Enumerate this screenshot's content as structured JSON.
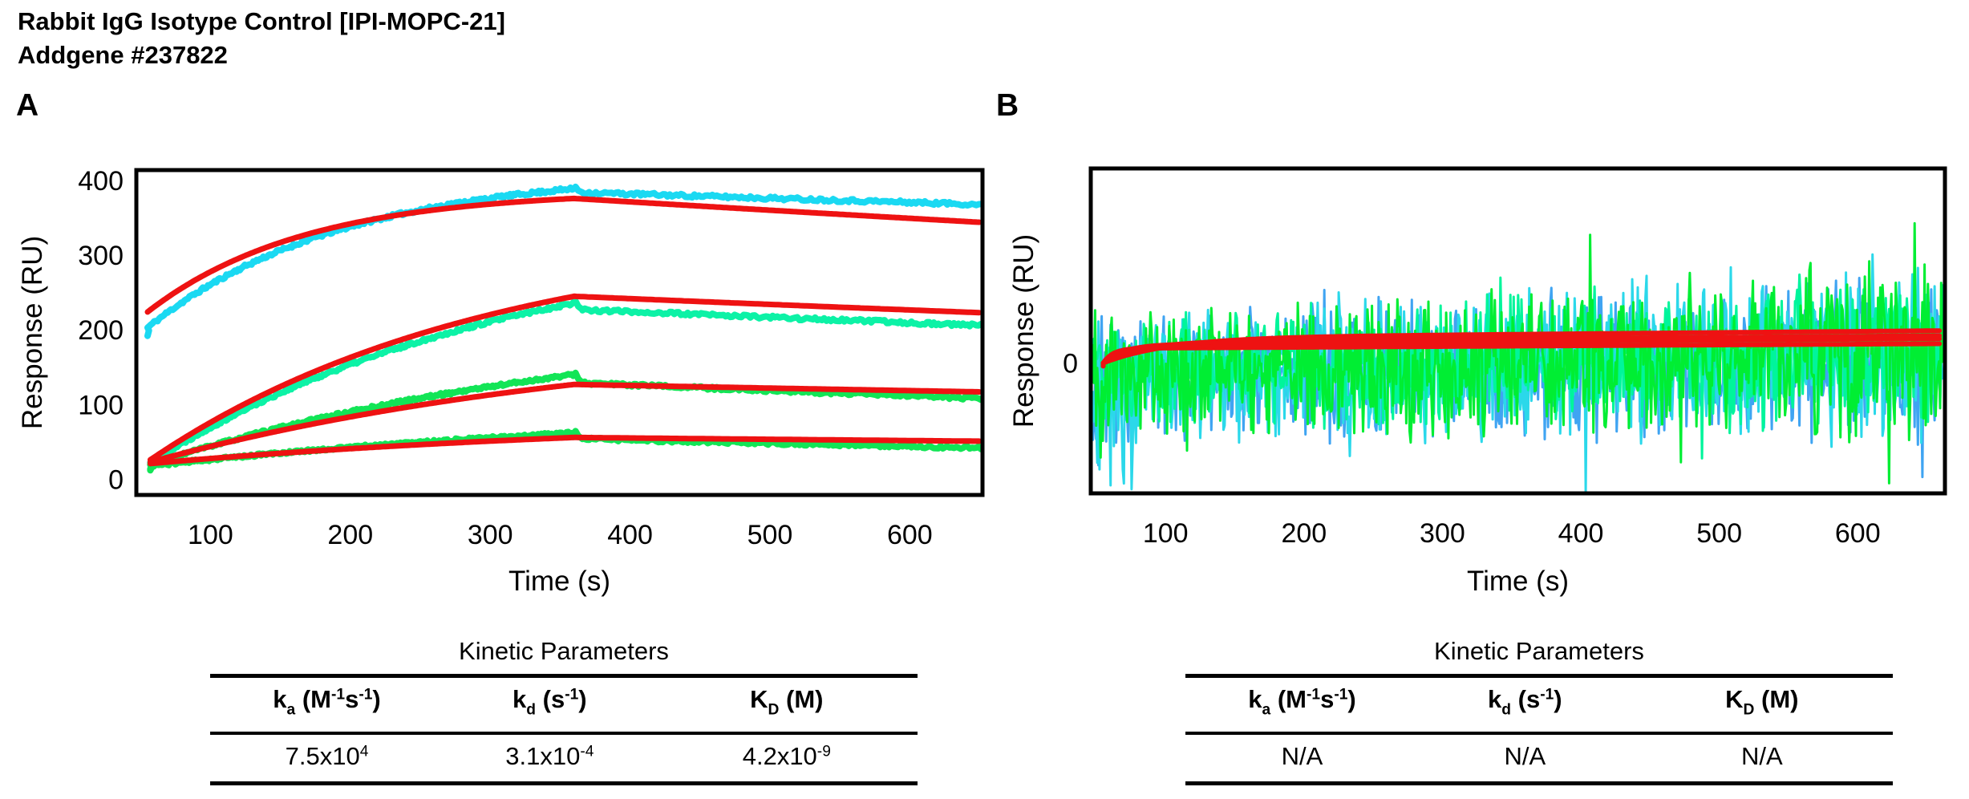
{
  "page": {
    "title_line1": "Rabbit IgG Isotype Control [IPI-MOPC-21]",
    "title_line2": "Addgene #237822",
    "background": "#ffffff",
    "accent_fit_color": "#ee1212"
  },
  "panels": [
    {
      "label": "A"
    },
    {
      "label": "B"
    }
  ],
  "chart_data": [
    {
      "type": "line",
      "panel": "A",
      "description": "SPR sensorgram, four analyte concentrations: noisy cyan/green traces with red 1:1 binding model fits; association ~55-360 s, dissociation 360-650 s",
      "xlabel": "Time (s)",
      "ylabel": "Response (RU)",
      "x_ticks": [
        100,
        200,
        300,
        400,
        500,
        600
      ],
      "y_ticks": [
        0,
        100,
        200,
        300,
        400
      ],
      "xlim": [
        47,
        652
      ],
      "ylim": [
        -21,
        414
      ],
      "grid": false,
      "legend": false,
      "series": [
        {
          "name": "conc-trace-1",
          "role": "data",
          "color": "#1ad9f2",
          "stroke": 8,
          "t_start": 55,
          "t_assoc_end": 360,
          "t_end": 651,
          "r_start": 203,
          "r_peak": 389,
          "r_end": 368,
          "tau": 140,
          "post_drop": 5,
          "hook": -11,
          "noise": 2.2,
          "seed": 11
        },
        {
          "name": "conc-trace-2",
          "role": "data",
          "color": "#0cf2a6",
          "stroke": 8,
          "t_start": 57,
          "t_assoc_end": 360,
          "t_end": 651,
          "r_start": 22,
          "r_peak": 236,
          "r_end": 206,
          "tau": 258,
          "post_drop": 9,
          "hook": -8,
          "noise": 2.2,
          "seed": 22
        },
        {
          "name": "conc-trace-3",
          "role": "data",
          "color": "#12e556",
          "stroke": 8,
          "t_start": 57,
          "t_assoc_end": 360,
          "t_end": 651,
          "r_start": 20,
          "r_peak": 140,
          "r_end": 108,
          "tau": 330,
          "post_drop": 11,
          "hook": -7,
          "noise": 2.0,
          "seed": 33
        },
        {
          "name": "conc-trace-4",
          "role": "data",
          "color": "#12e556",
          "stroke": 8,
          "t_start": 57,
          "t_assoc_end": 360,
          "t_end": 651,
          "r_start": 18,
          "r_peak": 62,
          "r_end": 42,
          "tau": 400,
          "post_drop": 8,
          "hook": -6,
          "noise": 1.8,
          "seed": 44
        },
        {
          "name": "fit-1",
          "role": "fit",
          "color": "#ee1212",
          "stroke": 7,
          "t_start": 55,
          "t_assoc_end": 360,
          "t_end": 651,
          "r_start": 224,
          "r_peak": 376,
          "r_end": 344,
          "tau": 112,
          "post_drop": 0,
          "hook": 0,
          "noise": 0,
          "seed": 1
        },
        {
          "name": "fit-2",
          "role": "fit",
          "color": "#ee1212",
          "stroke": 7,
          "t_start": 57,
          "t_assoc_end": 360,
          "t_end": 651,
          "r_start": 26,
          "r_peak": 245,
          "r_end": 223,
          "tau": 240,
          "post_drop": 0,
          "hook": 0,
          "noise": 0,
          "seed": 2
        },
        {
          "name": "fit-3",
          "role": "fit",
          "color": "#ee1212",
          "stroke": 7,
          "t_start": 57,
          "t_assoc_end": 360,
          "t_end": 651,
          "r_start": 23,
          "r_peak": 127,
          "r_end": 117,
          "tau": 340,
          "post_drop": 0,
          "hook": 0,
          "noise": 0,
          "seed": 3
        },
        {
          "name": "fit-4",
          "role": "fit",
          "color": "#ee1212",
          "stroke": 7,
          "t_start": 57,
          "t_assoc_end": 360,
          "t_end": 651,
          "r_start": 21,
          "r_peak": 56,
          "r_end": 51,
          "tau": 380,
          "post_drop": 0,
          "hook": 0,
          "noise": 0,
          "seed": 4
        }
      ]
    },
    {
      "type": "line",
      "panel": "B",
      "description": "Negative-control SPR sensorgram: green/cyan/blue noise bands centered near 0 RU with overlapping flat red fit curves; no binding detected",
      "xlabel": "Time (s)",
      "ylabel": "Response (RU)",
      "x_ticks": [
        100,
        200,
        300,
        400,
        500,
        600
      ],
      "y_ticks": [
        0
      ],
      "xlim": [
        46,
        663
      ],
      "ylim": [
        -67,
        100
      ],
      "grid": false,
      "legend": false,
      "noise_series": [
        {
          "name": "noise-blue",
          "color": "#3fa4f2",
          "stroke": 3,
          "amp": 34,
          "drift": [
            -8,
            4
          ],
          "grow": 0.4,
          "edge_dip": 40,
          "seed": 7
        },
        {
          "name": "noise-cyan",
          "color": "#2bd8ea",
          "stroke": 3,
          "amp": 36,
          "drift": [
            -7,
            6
          ],
          "grow": 0.45,
          "edge_dip": 48,
          "seed": 8
        },
        {
          "name": "noise-springgreen",
          "color": "#00f59b",
          "stroke": 3,
          "amp": 32,
          "drift": [
            -5,
            7
          ],
          "grow": 0.4,
          "edge_dip": 0,
          "seed": 9
        },
        {
          "name": "noise-green",
          "color": "#00ee33",
          "stroke": 3,
          "amp": 36,
          "drift": [
            -6,
            6
          ],
          "grow": 0.45,
          "edge_dip": 25,
          "seed": 10
        }
      ],
      "fit_series": [
        {
          "name": "fit-b-1",
          "color": "#ee1212",
          "stroke": 6,
          "t_start": 55,
          "t_end": 660,
          "asymptote": 7.5,
          "tau": 7,
          "slope": 0.004
        },
        {
          "name": "fit-b-2",
          "color": "#ee1212",
          "stroke": 6,
          "t_start": 55,
          "t_end": 660,
          "asymptote": 9.5,
          "tau": 15,
          "slope": 0.005
        },
        {
          "name": "fit-b-3",
          "color": "#ee1212",
          "stroke": 6,
          "t_start": 55,
          "t_end": 660,
          "asymptote": 11.0,
          "tau": 28,
          "slope": 0.005
        },
        {
          "name": "fit-b-4",
          "color": "#ee1212",
          "stroke": 6,
          "t_start": 55,
          "t_end": 660,
          "asymptote": 13.0,
          "tau": 48,
          "slope": 0.006
        }
      ]
    }
  ],
  "tables": [
    {
      "title": "Kinetic Parameters",
      "headers": [
        [
          {
            "t": "k"
          },
          {
            "t": "a",
            "f": "sub"
          },
          {
            "t": " (M"
          },
          {
            "t": "-1",
            "f": "sup"
          },
          {
            "t": "s"
          },
          {
            "t": "-1",
            "f": "sup"
          },
          {
            "t": ")"
          }
        ],
        [
          {
            "t": "k"
          },
          {
            "t": "d",
            "f": "sub"
          },
          {
            "t": " (s"
          },
          {
            "t": "-1",
            "f": "sup"
          },
          {
            "t": ")"
          }
        ],
        [
          {
            "t": "K"
          },
          {
            "t": "D",
            "f": "sub"
          },
          {
            "t": " (M)"
          }
        ]
      ],
      "values": [
        [
          {
            "t": "7.5x10"
          },
          {
            "t": "4",
            "f": "sup"
          }
        ],
        [
          {
            "t": "3.1x10"
          },
          {
            "t": "-4",
            "f": "sup"
          }
        ],
        [
          {
            "t": "4.2x10"
          },
          {
            "t": "-9",
            "f": "sup"
          }
        ]
      ]
    },
    {
      "title": "Kinetic Parameters",
      "headers": [
        [
          {
            "t": "k"
          },
          {
            "t": "a",
            "f": "sub"
          },
          {
            "t": " (M"
          },
          {
            "t": "-1",
            "f": "sup"
          },
          {
            "t": "s"
          },
          {
            "t": "-1",
            "f": "sup"
          },
          {
            "t": ")"
          }
        ],
        [
          {
            "t": "k"
          },
          {
            "t": "d",
            "f": "sub"
          },
          {
            "t": " (s"
          },
          {
            "t": "-1",
            "f": "sup"
          },
          {
            "t": ")"
          }
        ],
        [
          {
            "t": "K"
          },
          {
            "t": "D",
            "f": "sub"
          },
          {
            "t": " (M)"
          }
        ]
      ],
      "values": [
        [
          {
            "t": "N/A"
          }
        ],
        [
          {
            "t": "N/A"
          }
        ],
        [
          {
            "t": "N/A"
          }
        ]
      ]
    }
  ]
}
